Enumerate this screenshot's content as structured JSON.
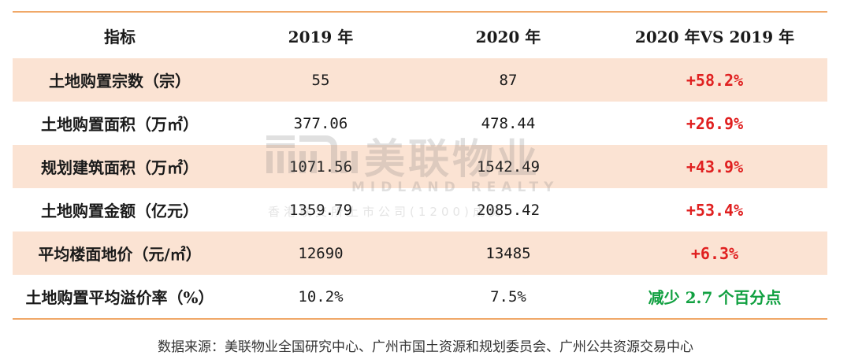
{
  "table": {
    "headers": [
      "指标",
      "2019 年",
      "2020 年",
      "2020 年VS 2019 年"
    ],
    "rows": [
      {
        "label": "土地购置宗数（宗）",
        "y2019": "55",
        "y2020": "87",
        "change": "+58.2%",
        "trend": "up",
        "shaded": true
      },
      {
        "label": "土地购置面积（万㎡）",
        "y2019": "377.06",
        "y2020": "478.44",
        "change": "+26.9%",
        "trend": "up",
        "shaded": false
      },
      {
        "label": "规划建筑面积（万㎡）",
        "y2019": "1071.56",
        "y2020": "1542.49",
        "change": "+43.9%",
        "trend": "up",
        "shaded": true
      },
      {
        "label": "土地购置金额（亿元）",
        "y2019": "1359.79",
        "y2020": "2085.42",
        "change": "+53.4%",
        "trend": "up",
        "shaded": false
      },
      {
        "label": "平均楼面地价（元/㎡）",
        "y2019": "12690",
        "y2020": "13485",
        "change": "+6.3%",
        "trend": "up",
        "shaded": true
      },
      {
        "label": "土地购置平均溢价率（%）",
        "y2019": "10.2%",
        "y2020": "7.5%",
        "change": "减少 2.7 个百分点",
        "trend": "down",
        "shaded": false
      }
    ]
  },
  "source": "数据来源：美联物业全国研究中心、广州市国土资源和规划委员会、广州公共资源交易中心",
  "watermark": {
    "brand_cn": "美联物业",
    "brand_en": "MIDLAND REALTY",
    "sub": "香港联交所上市公司(1200)成员"
  },
  "colors": {
    "accent_rule": "#f0a868",
    "row_shade": "#fbe3d3",
    "up": "#e02020",
    "down": "#10a040"
  }
}
